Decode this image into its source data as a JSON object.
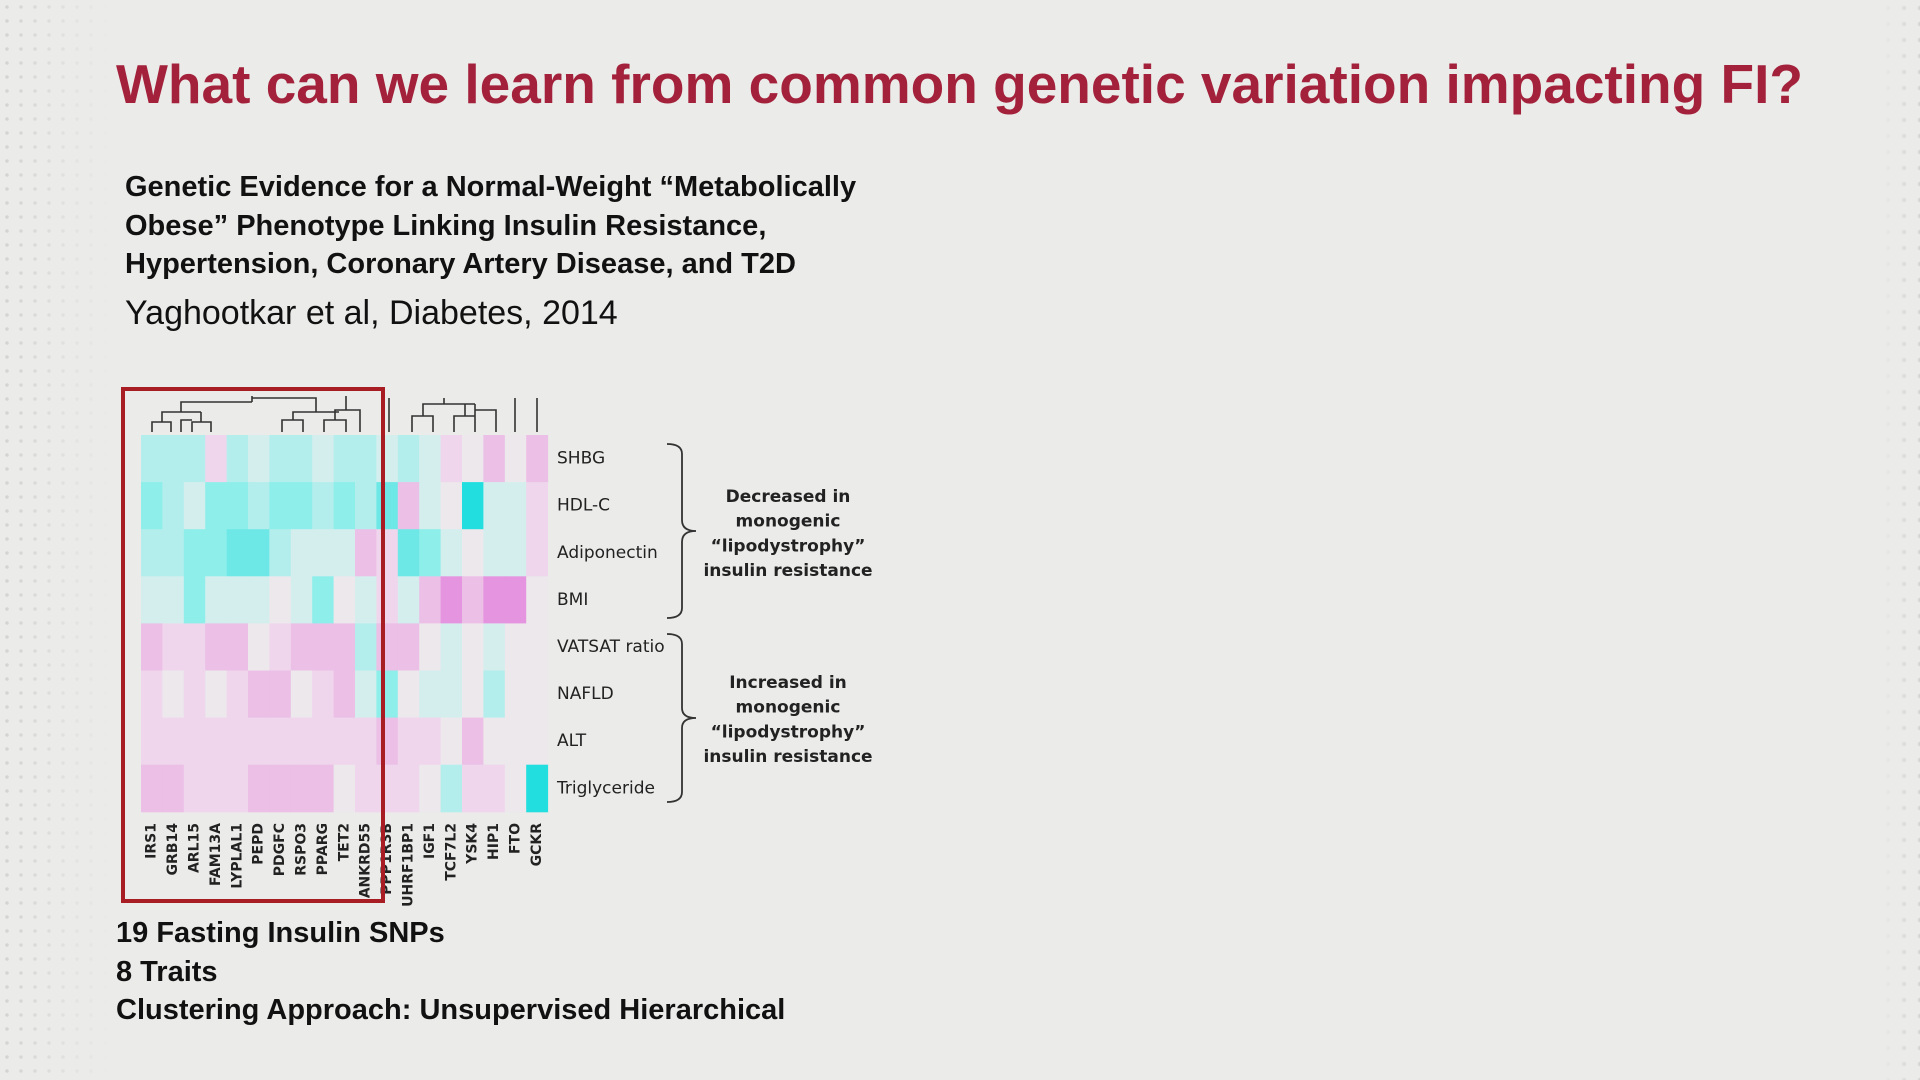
{
  "title": "What can we learn from common genetic variation impacting FI?",
  "reference": {
    "title_lines": [
      "Genetic Evidence for a Normal-Weight “Metabolically",
      "Obese” Phenotype Linking Insulin Resistance,",
      "Hypertension, Coronary Artery Disease, and T2D"
    ],
    "citation": "Yaghootkar et al, Diabetes, 2014"
  },
  "figure": {
    "rows": [
      "SHBG",
      "HDL-C",
      "Adiponectin",
      "BMI",
      "VATSAT ratio",
      "NAFLD",
      "ALT",
      "Triglyceride"
    ],
    "columns": [
      "IRS1",
      "GRB14",
      "ARL15",
      "FAM13A",
      "LYPLAL1",
      "PEPD",
      "PDGFC",
      "RSPO3",
      "PPARG",
      "TET2",
      "ANKRD55",
      "PPP1R3B",
      "UHRF1BP1",
      "IGF1",
      "TCF7L2",
      "YSK4",
      "HIP1",
      "FTO",
      "GCKR"
    ],
    "cells": [
      [
        "#b4eeec",
        "#b4eeec",
        "#b4eeec",
        "#efd6ec",
        "#b4eeec",
        "#d4eeee",
        "#b4eeec",
        "#b4eeec",
        "#d4eeee",
        "#b4eeec",
        "#b4eeec",
        "#d4eeee",
        "#b4eeec",
        "#d4eeee",
        "#efd6ec",
        "#ece8ec",
        "#ebbfe6",
        "#ece8ec",
        "#ebbfe6"
      ],
      [
        "#8eeeea",
        "#b4eeec",
        "#d4eeee",
        "#8eeeea",
        "#8eeeea",
        "#b4eeec",
        "#8eeeea",
        "#8eeeea",
        "#b4eeec",
        "#8eeeea",
        "#b4eeec",
        "#6ee8e6",
        "#ebbfe6",
        "#d4eeee",
        "#ece8ec",
        "#22dede",
        "#d4eeee",
        "#d4eeee",
        "#efd6ec"
      ],
      [
        "#b4eeec",
        "#b4eeec",
        "#8eeeea",
        "#8eeeea",
        "#6ee8e6",
        "#6ee8e6",
        "#b4eeec",
        "#d4eeee",
        "#d4eeee",
        "#d4eeee",
        "#ebbfe6",
        "#efd6ec",
        "#6ee8e6",
        "#8eeeea",
        "#d4eeee",
        "#ece8ec",
        "#d4eeee",
        "#d4eeee",
        "#efd6ec"
      ],
      [
        "#d4eeee",
        "#d4eeee",
        "#8eeeea",
        "#d4eeee",
        "#d4eeee",
        "#d4eeee",
        "#ece8ec",
        "#d4eeee",
        "#8eeeea",
        "#ece8ec",
        "#d4eeee",
        "#efd6ec",
        "#d4eeee",
        "#ebbfe6",
        "#e594e0",
        "#ebbfe6",
        "#e594e0",
        "#e594e0",
        "#ece8ec"
      ],
      [
        "#ebbfe6",
        "#efd6ec",
        "#efd6ec",
        "#ebbfe6",
        "#ebbfe6",
        "#ece8ec",
        "#efd6ec",
        "#ebbfe6",
        "#ebbfe6",
        "#ebbfe6",
        "#b4eeec",
        "#ebbfe6",
        "#ebbfe6",
        "#ece8ec",
        "#d4eeee",
        "#ece8ec",
        "#d4eeee",
        "#ece8ec",
        "#ece8ec"
      ],
      [
        "#efd6ec",
        "#ece8ec",
        "#efd6ec",
        "#ece8ec",
        "#efd6ec",
        "#ebbfe6",
        "#ebbfe6",
        "#ece8ec",
        "#efd6ec",
        "#ebbfe6",
        "#d4eeee",
        "#8eeeea",
        "#ece8ec",
        "#d4eeee",
        "#d4eeee",
        "#ece8ec",
        "#b4eeec",
        "#ece8ec",
        "#ece8ec"
      ],
      [
        "#efd6ec",
        "#efd6ec",
        "#efd6ec",
        "#efd6ec",
        "#efd6ec",
        "#efd6ec",
        "#efd6ec",
        "#efd6ec",
        "#efd6ec",
        "#efd6ec",
        "#efd6ec",
        "#ebbfe6",
        "#efd6ec",
        "#efd6ec",
        "#ece8ec",
        "#ebbfe6",
        "#ece8ec",
        "#ece8ec",
        "#ece8ec"
      ],
      [
        "#ebbfe6",
        "#ebbfe6",
        "#efd6ec",
        "#efd6ec",
        "#efd6ec",
        "#ebbfe6",
        "#ebbfe6",
        "#ebbfe6",
        "#ebbfe6",
        "#ece8ec",
        "#efd6ec",
        "#efd6ec",
        "#efd6ec",
        "#ece8ec",
        "#b4eeec",
        "#efd6ec",
        "#efd6ec",
        "#ece8ec",
        "#22dede"
      ]
    ],
    "groups": [
      {
        "lines": [
          "Decreased in",
          "monogenic",
          "“lipodystrophy”",
          "insulin resistance"
        ]
      },
      {
        "lines": [
          "Increased in",
          "monogenic",
          "“lipodystrophy”",
          "insulin resistance"
        ]
      }
    ]
  },
  "notes": [
    "19 Fasting Insulin SNPs",
    "8 Traits",
    "Clustering Approach: Unsupervised Hierarchical"
  ]
}
